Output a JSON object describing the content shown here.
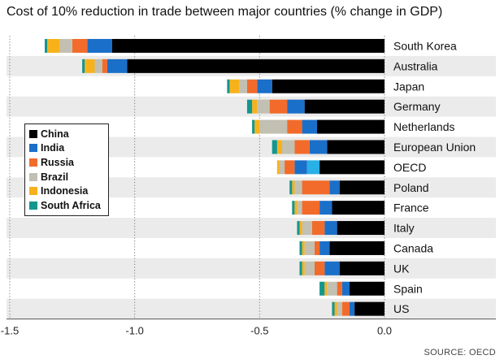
{
  "title": "Cost of 10% reduction in trade between major countries (% change in GDP)",
  "source": "SOURCE: OECD",
  "legend": [
    {
      "name": "China",
      "color": "#000000"
    },
    {
      "name": "India",
      "color": "#1a6fc9"
    },
    {
      "name": "Russia",
      "color": "#f26b2a"
    },
    {
      "name": "Brazil",
      "color": "#c2c0b2"
    },
    {
      "name": "Indonesia",
      "color": "#f7b21b"
    },
    {
      "name": "South Africa",
      "color": "#13968e"
    }
  ],
  "chart_data": {
    "type": "bar",
    "orientation": "horizontal",
    "stacked": true,
    "title": "Cost of 10% reduction in trade between major countries (% change in GDP)",
    "xlim": [
      -1.5,
      0.0
    ],
    "xticks": [
      "-1.5",
      "-1.0",
      "-0.5",
      "0.0"
    ],
    "xtick_values": [
      -1.5,
      -1.0,
      -0.5,
      0.0
    ],
    "categories": [
      "South Korea",
      "Australia",
      "Japan",
      "Germany",
      "Netherlands",
      "European Union",
      "OECD",
      "Poland",
      "France",
      "Italy",
      "Canada",
      "UK",
      "Spain",
      "US"
    ],
    "series": [
      {
        "name": "China",
        "color": "#000000",
        "values": [
          -1.09,
          -1.03,
          -0.45,
          -0.32,
          -0.27,
          -0.23,
          -0.26,
          -0.18,
          -0.21,
          -0.19,
          -0.22,
          -0.18,
          -0.14,
          -0.12
        ]
      },
      {
        "name": "India",
        "color": "#1a6fc9",
        "values": [
          -0.1,
          -0.08,
          -0.06,
          -0.07,
          -0.06,
          -0.07,
          -0.05,
          -0.04,
          -0.05,
          -0.05,
          -0.04,
          -0.06,
          -0.03,
          -0.02
        ]
      },
      {
        "name": "Russia",
        "color": "#f26b2a",
        "values": [
          -0.06,
          -0.02,
          -0.04,
          -0.07,
          -0.06,
          -0.06,
          -0.04,
          -0.11,
          -0.07,
          -0.05,
          -0.02,
          -0.04,
          -0.02,
          -0.03
        ]
      },
      {
        "name": "Brazil",
        "color": "#c2c0b2",
        "values": [
          -0.05,
          -0.03,
          -0.03,
          -0.05,
          -0.11,
          -0.05,
          -0.02,
          -0.03,
          -0.02,
          -0.04,
          -0.04,
          -0.04,
          -0.04,
          -0.02
        ]
      },
      {
        "name": "Indonesia",
        "color": "#f7b21b",
        "values": [
          -0.05,
          -0.04,
          -0.04,
          -0.02,
          -0.02,
          -0.02,
          -0.01,
          -0.01,
          -0.01,
          -0.01,
          -0.01,
          -0.01,
          -0.01,
          -0.01
        ]
      },
      {
        "name": "South Africa",
        "color": "#13968e",
        "values": [
          -0.01,
          -0.01,
          -0.01,
          -0.02,
          -0.01,
          -0.02,
          0.0,
          -0.01,
          -0.01,
          -0.01,
          -0.01,
          -0.01,
          -0.02,
          -0.01
        ]
      }
    ],
    "extra_segments": [
      {
        "category": "OECD",
        "color": "#29b0e6",
        "value": -0.05,
        "position_after_series": "China"
      }
    ],
    "grid": {
      "vertical_dotted": true,
      "row_banding": true
    },
    "legend_position": "left"
  }
}
